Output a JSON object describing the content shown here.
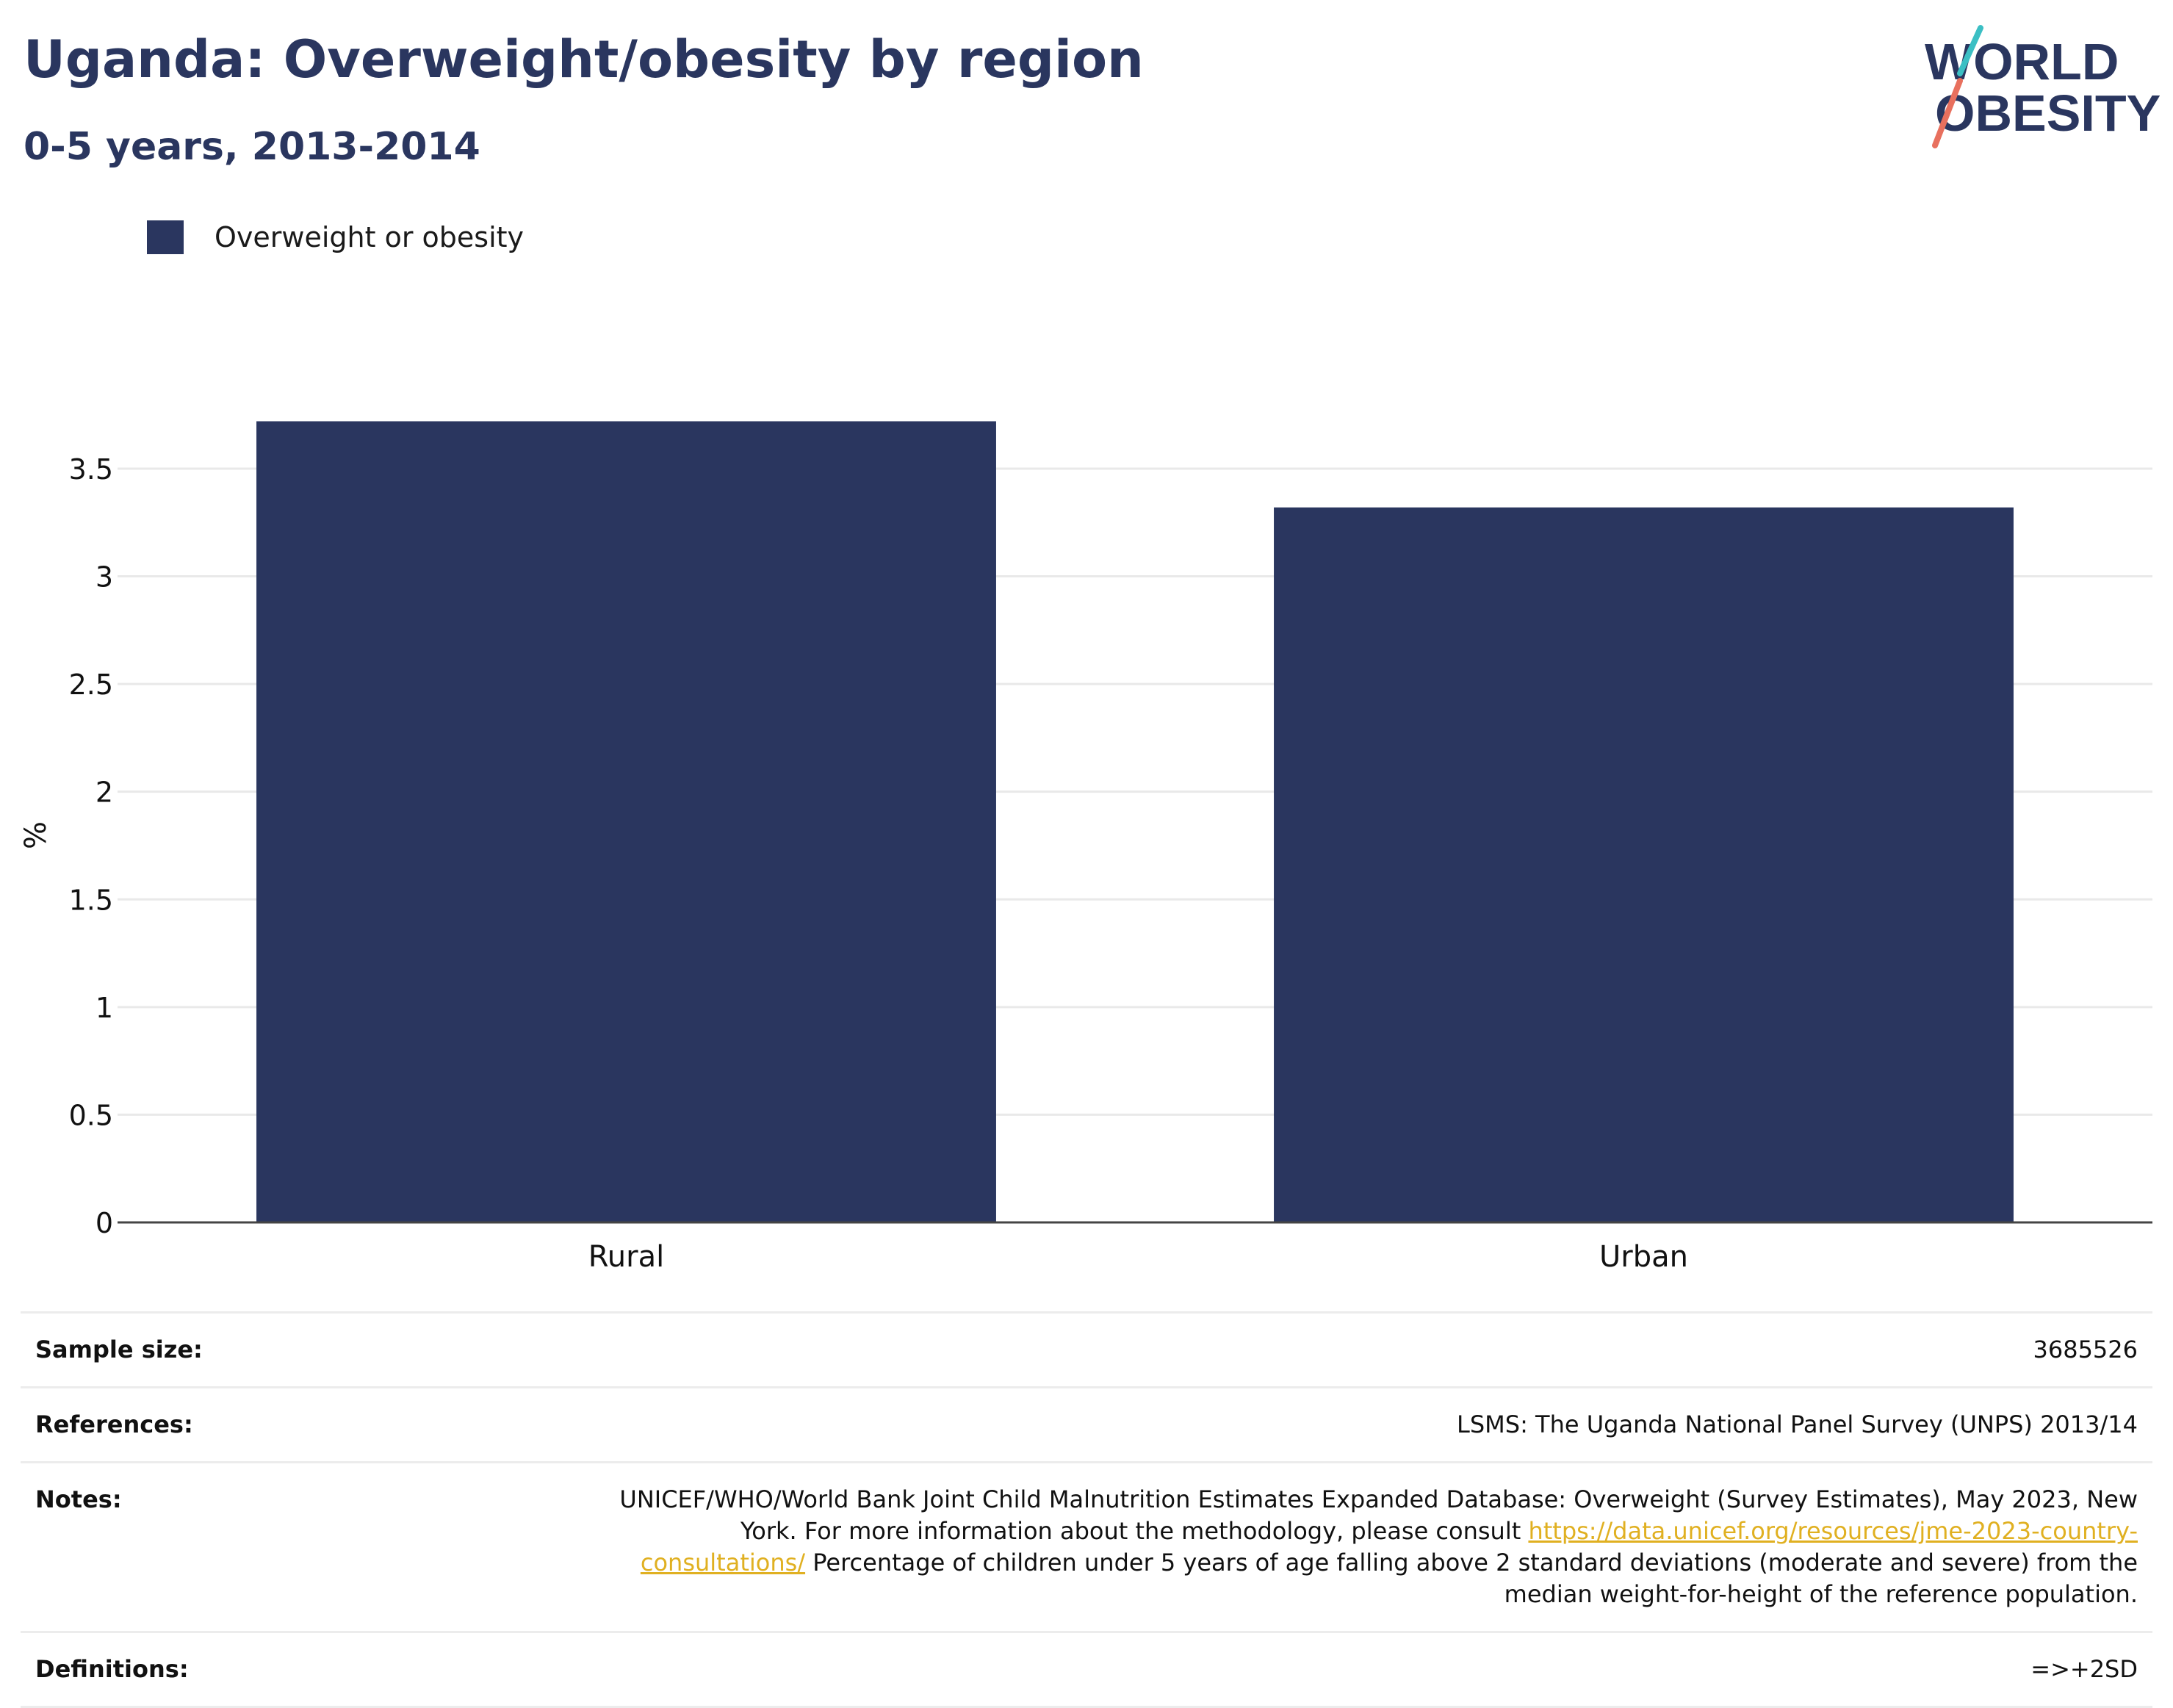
{
  "header": {
    "title": "Uganda: Overweight/obesity by region",
    "subtitle": "0-5 years, 2013-2014"
  },
  "logo": {
    "line1": "WORLD",
    "line2": "OBESITY",
    "colors": {
      "text": "#2a365f",
      "slash_top": "#3bbfc4",
      "slash_bottom": "#e8705e"
    }
  },
  "legend": {
    "label": "Overweight or obesity",
    "color": "#2a365f"
  },
  "chart_data": {
    "type": "bar",
    "categories": [
      "Rural",
      "Urban"
    ],
    "series": [
      {
        "name": "Overweight or obesity",
        "values": [
          3.72,
          3.32
        ],
        "color": "#2a365f"
      }
    ],
    "ylabel": "%",
    "xlabel": "",
    "ylim": [
      0,
      3.8
    ],
    "yticks": [
      0,
      0.5,
      1,
      1.5,
      2,
      2.5,
      3,
      3.5
    ],
    "ytick_labels": [
      "0",
      "0.5",
      "1",
      "1.5",
      "2",
      "2.5",
      "3",
      "3.5"
    ],
    "grid": true,
    "legend_position": "top-left"
  },
  "info": {
    "sample_size_label": "Sample size:",
    "sample_size_value": "3685526",
    "references_label": "References:",
    "references_value": "LSMS: The Uganda National Panel Survey (UNPS) 2013/14",
    "notes_label": "Notes:",
    "notes_text_1": "UNICEF/WHO/World Bank Joint Child Malnutrition Estimates Expanded Database: Overweight (Survey Estimates), May 2023, New York. For more information about the methodology, please consult ",
    "notes_link": "https://data.unicef.org/resources/jme-2023-country-consultations/",
    "notes_text_2": " Percentage of children under 5 years of age falling above 2 standard deviations (moderate and severe) from the median weight-for-height of the reference population.",
    "definitions_label": "Definitions:",
    "definitions_value": "=>+2SD"
  }
}
